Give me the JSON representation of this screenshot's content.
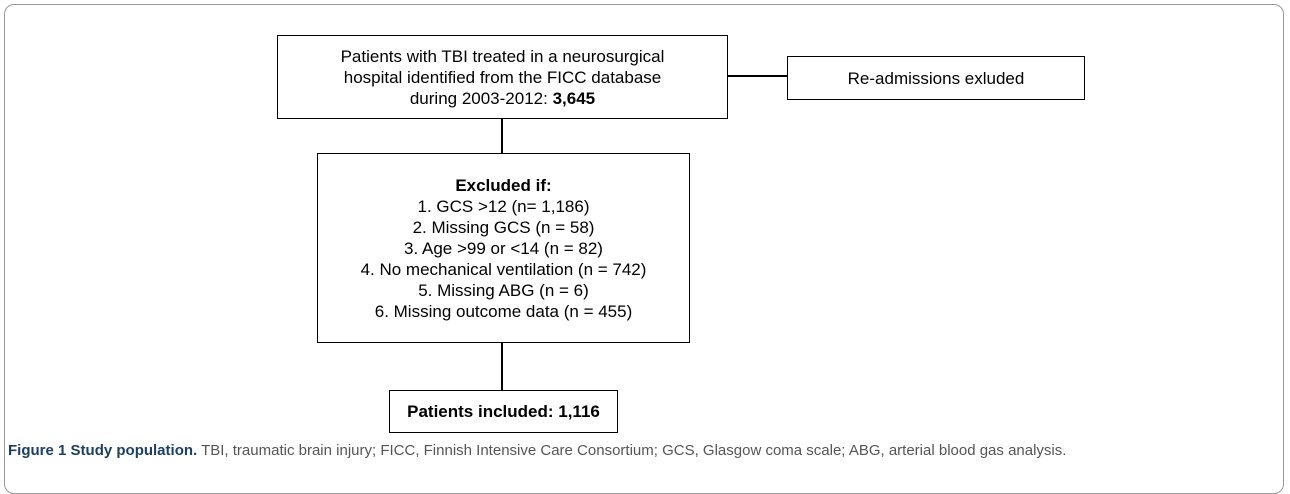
{
  "nodes": [
    {
      "lines": [
        "Patients with TBI treated in a neurosurgical",
        "hospital identified from the FICC database",
        "during 2003-2012:"
      ],
      "count": "3,645"
    },
    {
      "lines": [
        "Re-admissions exluded"
      ]
    },
    {
      "heading": "Excluded if:",
      "lines": [
        "1. GCS >12 (n= 1,186)",
        "2. Missing GCS (n = 58)",
        "3. Age >99 or <14 (n = 82)",
        "4. No mechanical ventilation (n = 742)",
        "5. Missing ABG (n = 6)",
        "6. Missing outcome data (n = 455)"
      ]
    },
    {
      "label": "Patients included: 1,116"
    }
  ],
  "caption": {
    "label": "Figure 1",
    "title": "Study population.",
    "text": "TBI, traumatic brain injury; FICC, Finnish Intensive Care Consortium; GCS, Glasgow coma scale; ABG, arterial blood gas analysis."
  }
}
